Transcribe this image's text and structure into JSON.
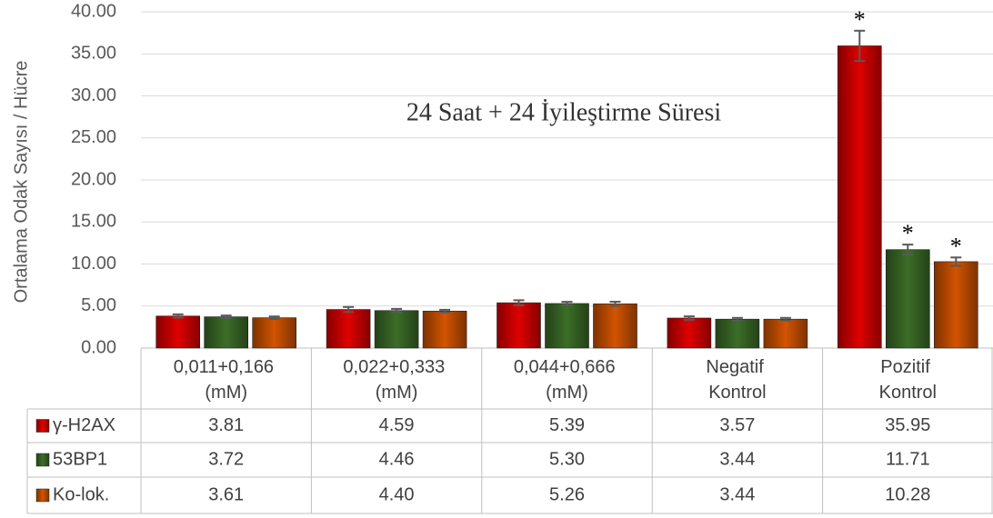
{
  "chart_data": {
    "type": "bar",
    "title": "24 Saat + 24 İyileştirme Süresi",
    "y_label": "Ortalama Odak Sayısı / Hücre",
    "categories": [
      "0,011+0,166 (mM)",
      "0,022+0,333 (mM)",
      "0,044+0,666 (mM)",
      "Negatif Kontrol",
      "Pozitif Kontrol"
    ],
    "series": [
      {
        "name": "γ-H2AX",
        "color": "#e00000",
        "values": [
          3.81,
          4.59,
          5.39,
          3.57,
          35.95
        ],
        "value_labels": [
          "3.81",
          "4.59",
          "5.39",
          "3.57",
          "35.95"
        ],
        "errors": [
          0.2,
          0.3,
          0.3,
          0.2,
          1.8
        ],
        "significance": [
          null,
          null,
          null,
          null,
          "*"
        ]
      },
      {
        "name": "53BP1",
        "color": "#3c6e28",
        "values": [
          3.72,
          4.46,
          5.3,
          3.44,
          11.71
        ],
        "value_labels": [
          "3.72",
          "4.46",
          "5.30",
          "3.44",
          "11.71"
        ],
        "errors": [
          0.15,
          0.2,
          0.2,
          0.15,
          0.6
        ],
        "significance": [
          null,
          null,
          null,
          null,
          "*"
        ]
      },
      {
        "name": "Ko-lok.",
        "color": "#d35400",
        "values": [
          3.61,
          4.4,
          5.26,
          3.44,
          10.28
        ],
        "value_labels": [
          "3.61",
          "4.40",
          "5.26",
          "3.44",
          "10.28"
        ],
        "errors": [
          0.15,
          0.15,
          0.25,
          0.15,
          0.5
        ],
        "significance": [
          null,
          null,
          null,
          null,
          "*"
        ]
      }
    ],
    "ylim": [
      0,
      40
    ],
    "yticks": [
      {
        "value": 0,
        "label": "0.00"
      },
      {
        "value": 5,
        "label": "5.00"
      },
      {
        "value": 10,
        "label": "10.00"
      },
      {
        "value": 15,
        "label": "15.00"
      },
      {
        "value": 20,
        "label": "20.00"
      },
      {
        "value": 25,
        "label": "25.00"
      },
      {
        "value": 30,
        "label": "30.00"
      },
      {
        "value": 35,
        "label": "35.00"
      },
      {
        "value": 40,
        "label": "40.00"
      }
    ],
    "grid": true
  }
}
